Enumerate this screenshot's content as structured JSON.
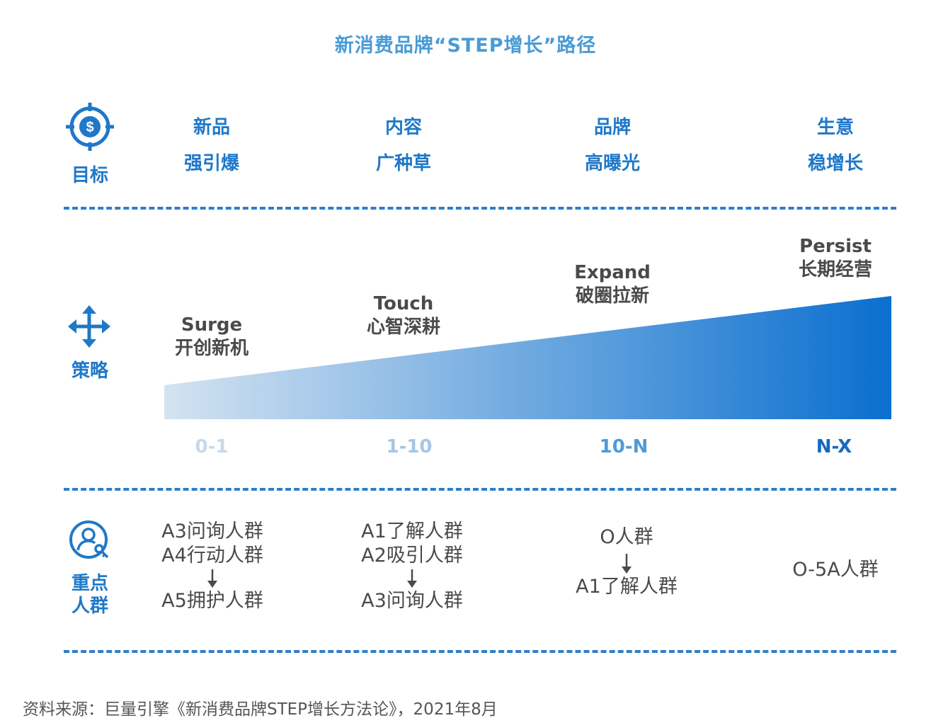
{
  "title": "新消费品牌“STEP增长”路径",
  "rows": {
    "goal": {
      "label": "目标",
      "icon": "dollar-target-icon"
    },
    "strategy": {
      "label": "策略",
      "icon": "move-arrows-icon"
    },
    "crowd": {
      "label_line1": "重点",
      "label_line2": "人群",
      "icon": "user-key-icon"
    }
  },
  "goals": [
    {
      "line1": "新品",
      "line2": "强引爆"
    },
    {
      "line1": "内容",
      "line2": "广种草"
    },
    {
      "line1": "品牌",
      "line2": "高曝光"
    },
    {
      "line1": "生意",
      "line2": "稳增长"
    }
  ],
  "strategies": [
    {
      "en": "Surge",
      "zh": "开创新机"
    },
    {
      "en": "Touch",
      "zh": "心智深耕"
    },
    {
      "en": "Expand",
      "zh": "破圈拉新"
    },
    {
      "en": "Persist",
      "zh": "长期经营"
    }
  ],
  "stages": [
    "0-1",
    "1-10",
    "10-N",
    "N-X"
  ],
  "crowds": [
    {
      "from": [
        "A3问询人群",
        "A4行动人群"
      ],
      "to": [
        "A5拥护人群"
      ]
    },
    {
      "from": [
        "A1了解人群",
        "A2吸引人群"
      ],
      "to": [
        "A3问询人群"
      ]
    },
    {
      "from": [
        "O人群"
      ],
      "to": [
        "A1了解人群"
      ]
    },
    {
      "from": [
        "O-5A人群"
      ],
      "to": []
    }
  ],
  "colors": {
    "accent": "#1f78c8",
    "title": "#4a9bd6",
    "gradient_start": "#d4e3f1",
    "gradient_end": "#0a6fcf",
    "stage_colors": [
      "#c6d9ec",
      "#a5c6e6",
      "#4f9bd8",
      "#1569c2"
    ]
  },
  "source": "资料来源：巨量引擎《新消费品牌STEP增长方法论》，2021年8月"
}
